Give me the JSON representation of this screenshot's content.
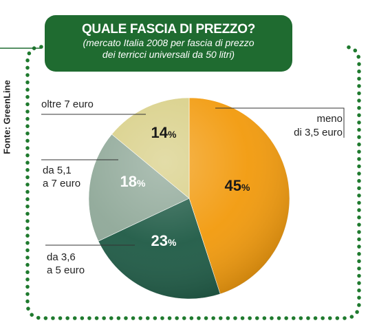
{
  "chart_data": {
    "type": "pie",
    "title": "QUALE FASCIA DI PREZZO?",
    "subtitle_lines": [
      "(mercato Italia 2008 per fascia di prezzo",
      "dei terricci universali da 50 litri)"
    ],
    "source": "Fonte: GreenLine",
    "slices": [
      {
        "label_lines": [
          "meno",
          "di 3,5 euro"
        ],
        "value": 45,
        "value_label": "45",
        "color": "#f29a0c",
        "text_color": "#1a1a1a"
      },
      {
        "label_lines": [
          "da 3,6",
          "a 5 euro"
        ],
        "value": 23,
        "value_label": "23",
        "color": "#1e5a45",
        "text_color": "#ffffff"
      },
      {
        "label_lines": [
          "da 5,1",
          "a 7 euro"
        ],
        "value": 18,
        "value_label": "18",
        "color": "#8fa898",
        "text_color": "#ffffff"
      },
      {
        "label_lines": [
          "oltre 7 euro"
        ],
        "value": 14,
        "value_label": "14",
        "color": "#d8cf86",
        "text_color": "#1a1a1a"
      }
    ],
    "percent_sign": "%",
    "start": "12 o'clock",
    "direction": "clockwise"
  },
  "colors": {
    "title_box": "#1f6b30",
    "dotted_border": "#1f7a2e"
  }
}
